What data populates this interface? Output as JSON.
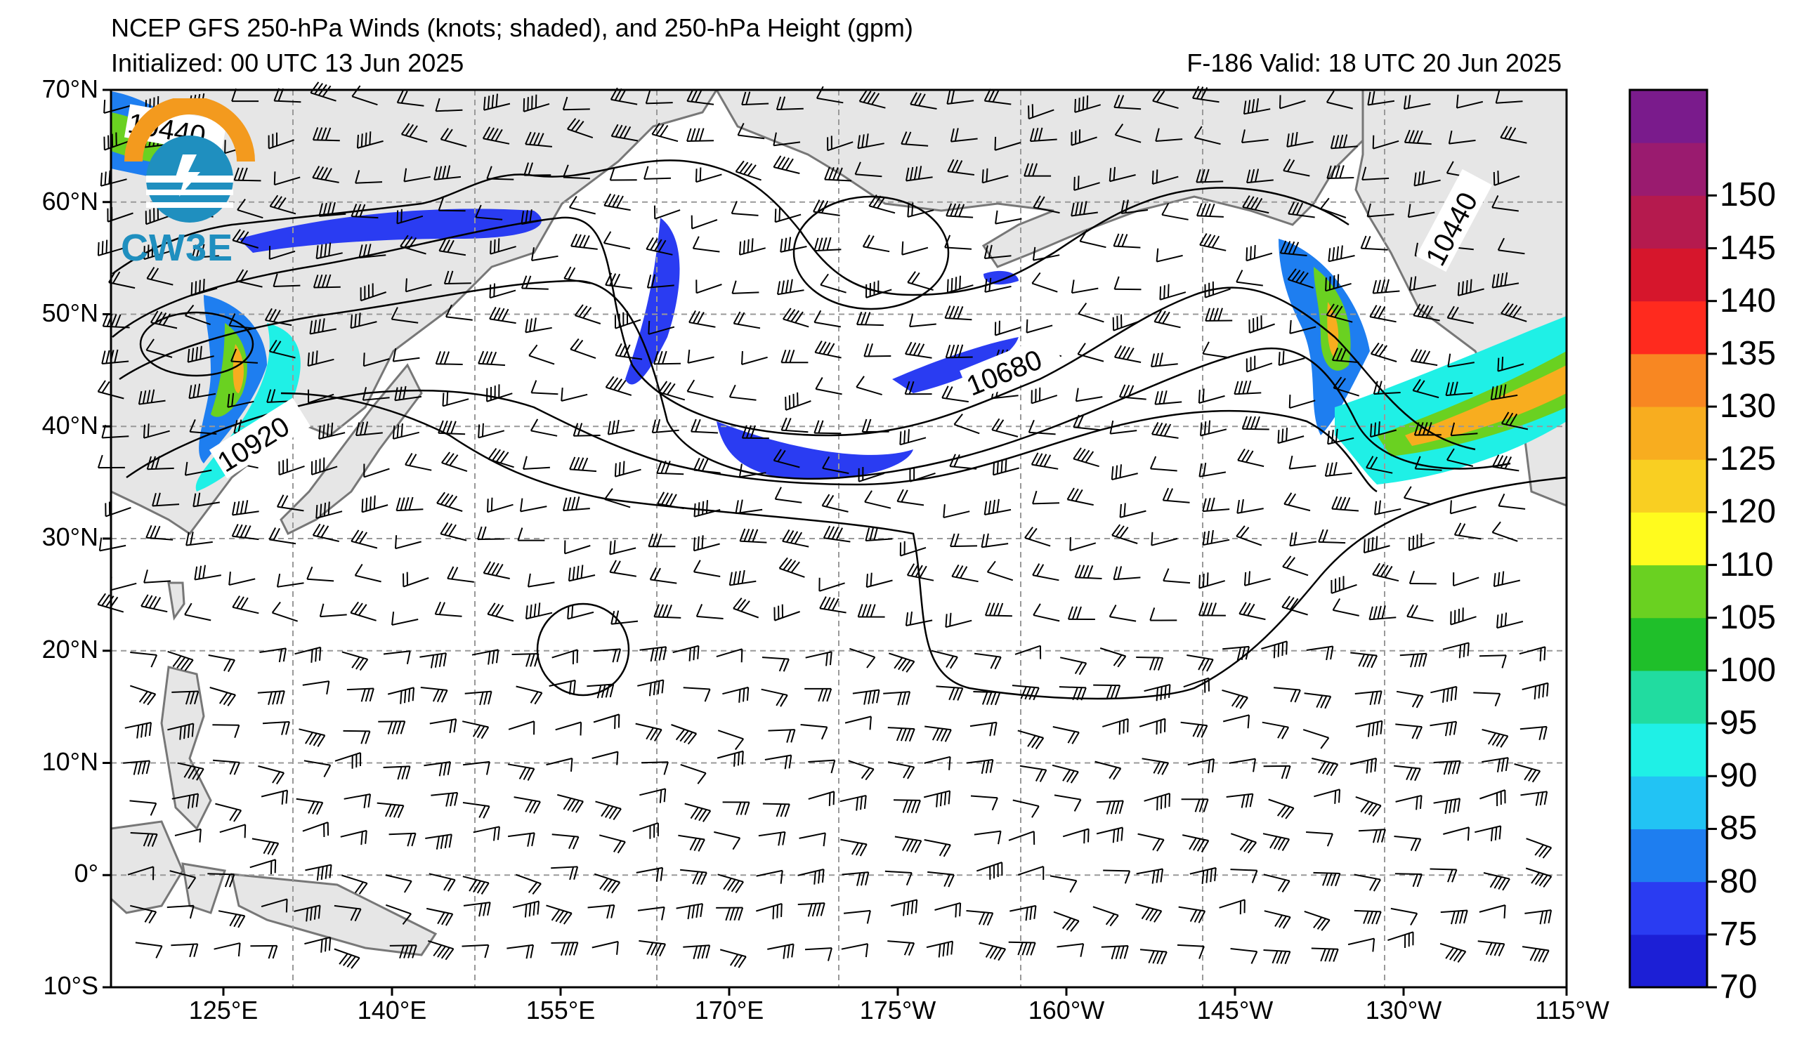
{
  "header": {
    "title": "NCEP GFS 250-hPa Winds (knots; shaded), and 250-hPa Height (gpm)",
    "initialized": "Initialized: 00 UTC 13 Jun 2025",
    "valid": "F-186  Valid: 18 UTC 20 Jun 2025"
  },
  "map": {
    "lat_labels": [
      "70°N",
      "60°N",
      "50°N",
      "40°N",
      "30°N",
      "20°N",
      "10°N",
      "0°",
      "10°S"
    ],
    "lon_labels": [
      "125°E",
      "140°E",
      "155°E",
      "170°E",
      "175°W",
      "160°W",
      "145°W",
      "130°W",
      "115°W"
    ],
    "contour_labels": [
      "10920",
      "10680",
      "10440",
      "10440"
    ],
    "land_color": "#e6e6e6",
    "coast_color": "#777777"
  },
  "colorbar": {
    "units": "knots",
    "ticks": [
      "70",
      "75",
      "80",
      "85",
      "90",
      "95",
      "100",
      "105",
      "110",
      "120",
      "125",
      "130",
      "135",
      "140",
      "145",
      "150"
    ],
    "colors": [
      "#1c1fd6",
      "#2a3cf2",
      "#1e7ef0",
      "#22c3f4",
      "#1ff0e6",
      "#21dca0",
      "#1fbf2a",
      "#6ad121",
      "#fffb1e",
      "#f9cf22",
      "#f8ad1f",
      "#f88722",
      "#ff2a1e",
      "#d6162c",
      "#b51a4e",
      "#9a1b6f",
      "#7a1b8c"
    ]
  },
  "logo": {
    "text": "CW3E"
  }
}
